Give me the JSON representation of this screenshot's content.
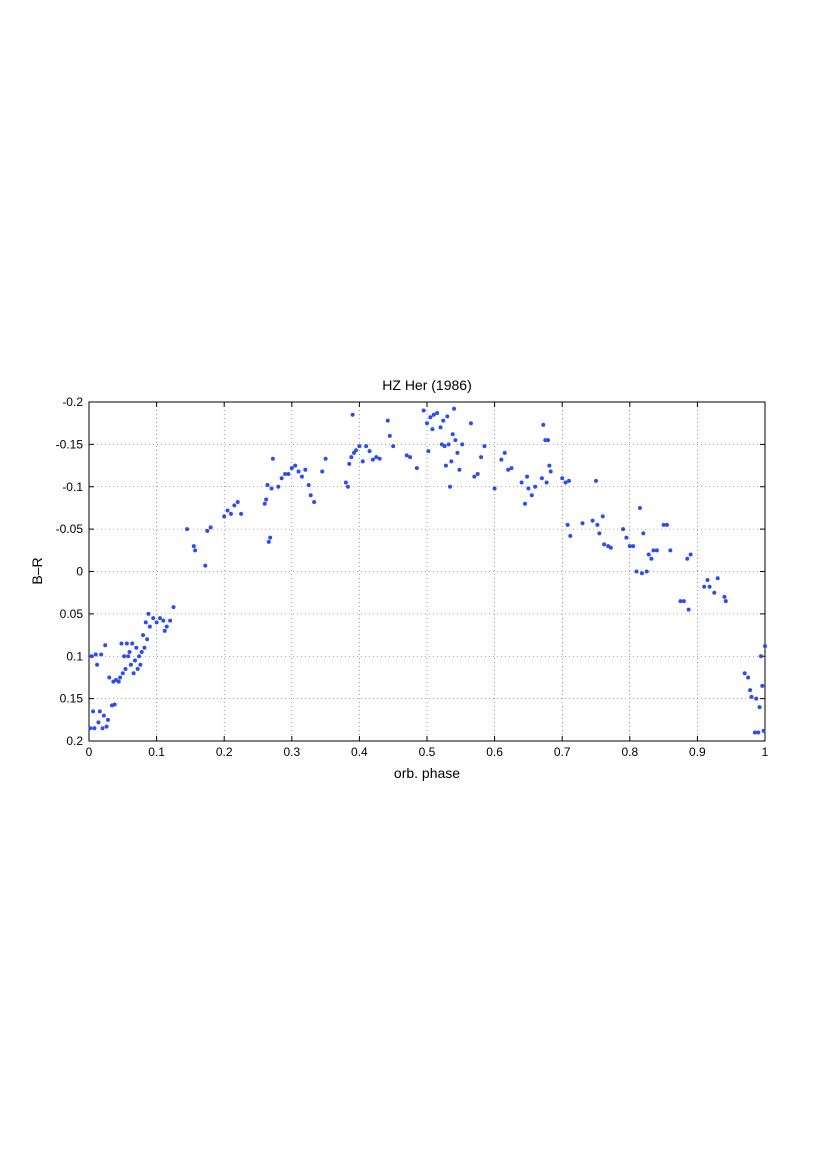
{
  "chart_data": {
    "type": "scatter",
    "title": "HZ Her (1986)",
    "xlabel": "orb. phase",
    "ylabel": "B–R",
    "color": "#2b4cf0",
    "grid": true,
    "y_inverted": true,
    "xlim": [
      0,
      1
    ],
    "xticks": [
      0,
      0.1,
      0.2,
      0.3,
      0.4,
      0.5,
      0.6,
      0.7,
      0.8,
      0.9,
      1
    ],
    "ylim": [
      -0.2,
      0.2
    ],
    "yticks": [
      -0.2,
      -0.15,
      -0.1,
      -0.05,
      0,
      0.05,
      0.1,
      0.15,
      0.2
    ],
    "x": [
      0.002,
      0.004,
      0.006,
      0.008,
      0.01,
      0.012,
      0.014,
      0.016,
      0.018,
      0.02,
      0.022,
      0.024,
      0.026,
      0.028,
      0.03,
      0.034,
      0.036,
      0.038,
      0.04,
      0.044,
      0.046,
      0.048,
      0.05,
      0.052,
      0.054,
      0.056,
      0.058,
      0.06,
      0.062,
      0.064,
      0.066,
      0.068,
      0.07,
      0.072,
      0.074,
      0.076,
      0.078,
      0.08,
      0.082,
      0.084,
      0.086,
      0.088,
      0.09,
      0.095,
      0.1,
      0.105,
      0.11,
      0.112,
      0.115,
      0.12,
      0.125,
      0.145,
      0.155,
      0.157,
      0.172,
      0.175,
      0.18,
      0.2,
      0.205,
      0.21,
      0.215,
      0.22,
      0.225,
      0.26,
      0.262,
      0.264,
      0.266,
      0.268,
      0.27,
      0.272,
      0.28,
      0.285,
      0.29,
      0.295,
      0.3,
      0.305,
      0.31,
      0.315,
      0.32,
      0.325,
      0.328,
      0.333,
      0.345,
      0.35,
      0.38,
      0.383,
      0.385,
      0.388,
      0.39,
      0.392,
      0.395,
      0.4,
      0.405,
      0.41,
      0.415,
      0.42,
      0.425,
      0.43,
      0.442,
      0.445,
      0.45,
      0.47,
      0.475,
      0.485,
      0.495,
      0.5,
      0.502,
      0.505,
      0.508,
      0.51,
      0.515,
      0.52,
      0.522,
      0.524,
      0.526,
      0.528,
      0.53,
      0.532,
      0.534,
      0.536,
      0.538,
      0.54,
      0.542,
      0.545,
      0.548,
      0.552,
      0.565,
      0.57,
      0.575,
      0.58,
      0.585,
      0.6,
      0.61,
      0.615,
      0.62,
      0.625,
      0.64,
      0.645,
      0.648,
      0.65,
      0.655,
      0.66,
      0.67,
      0.672,
      0.675,
      0.677,
      0.679,
      0.681,
      0.683,
      0.7,
      0.705,
      0.708,
      0.71,
      0.712,
      0.73,
      0.745,
      0.75,
      0.752,
      0.755,
      0.76,
      0.762,
      0.768,
      0.772,
      0.79,
      0.795,
      0.8,
      0.805,
      0.81,
      0.815,
      0.818,
      0.82,
      0.825,
      0.828,
      0.832,
      0.835,
      0.84,
      0.85,
      0.855,
      0.86,
      0.875,
      0.88,
      0.885,
      0.887,
      0.89,
      0.91,
      0.915,
      0.918,
      0.925,
      0.93,
      0.94,
      0.942,
      0.97,
      0.975,
      0.978,
      0.98,
      0.985,
      0.987,
      0.99,
      0.992,
      0.994,
      0.996,
      0.998,
      1.0
    ],
    "values": [
      0.185,
      0.1,
      0.165,
      0.185,
      0.098,
      0.11,
      0.178,
      0.165,
      0.098,
      0.185,
      0.17,
      0.087,
      0.183,
      0.175,
      0.125,
      0.158,
      0.13,
      0.157,
      0.128,
      0.13,
      0.125,
      0.085,
      0.12,
      0.1,
      0.115,
      0.085,
      0.1,
      0.095,
      0.11,
      0.085,
      0.12,
      0.105,
      0.09,
      0.115,
      0.1,
      0.11,
      0.095,
      0.075,
      0.09,
      0.06,
      0.08,
      0.05,
      0.065,
      0.055,
      0.06,
      0.055,
      0.058,
      0.07,
      0.065,
      0.058,
      0.042,
      -0.05,
      -0.03,
      -0.025,
      -0.007,
      -0.048,
      -0.052,
      -0.065,
      -0.072,
      -0.068,
      -0.078,
      -0.082,
      -0.068,
      -0.08,
      -0.085,
      -0.102,
      -0.035,
      -0.04,
      -0.098,
      -0.133,
      -0.1,
      -0.11,
      -0.115,
      -0.115,
      -0.122,
      -0.125,
      -0.118,
      -0.112,
      -0.12,
      -0.102,
      -0.09,
      -0.082,
      -0.118,
      -0.133,
      -0.105,
      -0.1,
      -0.127,
      -0.135,
      -0.185,
      -0.14,
      -0.143,
      -0.148,
      -0.13,
      -0.148,
      -0.142,
      -0.132,
      -0.135,
      -0.133,
      -0.178,
      -0.16,
      -0.148,
      -0.137,
      -0.135,
      -0.122,
      -0.19,
      -0.175,
      -0.142,
      -0.182,
      -0.168,
      -0.185,
      -0.187,
      -0.17,
      -0.15,
      -0.178,
      -0.148,
      -0.125,
      -0.183,
      -0.15,
      -0.1,
      -0.13,
      -0.162,
      -0.192,
      -0.155,
      -0.14,
      -0.12,
      -0.15,
      -0.175,
      -0.112,
      -0.115,
      -0.135,
      -0.148,
      -0.098,
      -0.132,
      -0.14,
      -0.12,
      -0.122,
      -0.105,
      -0.08,
      -0.112,
      -0.098,
      -0.09,
      -0.1,
      -0.11,
      -0.173,
      -0.155,
      -0.105,
      -0.155,
      -0.125,
      -0.118,
      -0.11,
      -0.105,
      -0.055,
      -0.107,
      -0.042,
      -0.057,
      -0.06,
      -0.107,
      -0.055,
      -0.045,
      -0.065,
      -0.032,
      -0.03,
      -0.028,
      -0.05,
      -0.04,
      -0.03,
      -0.03,
      0.0,
      -0.075,
      0.002,
      -0.045,
      0.0,
      -0.02,
      -0.015,
      -0.025,
      -0.025,
      -0.055,
      -0.055,
      -0.025,
      0.035,
      0.035,
      -0.015,
      0.045,
      -0.02,
      0.018,
      0.01,
      0.018,
      0.025,
      0.008,
      0.03,
      0.035,
      0.12,
      0.125,
      0.14,
      0.148,
      0.19,
      0.15,
      0.19,
      0.16,
      0.1,
      0.135,
      0.188,
      0.088
    ]
  }
}
